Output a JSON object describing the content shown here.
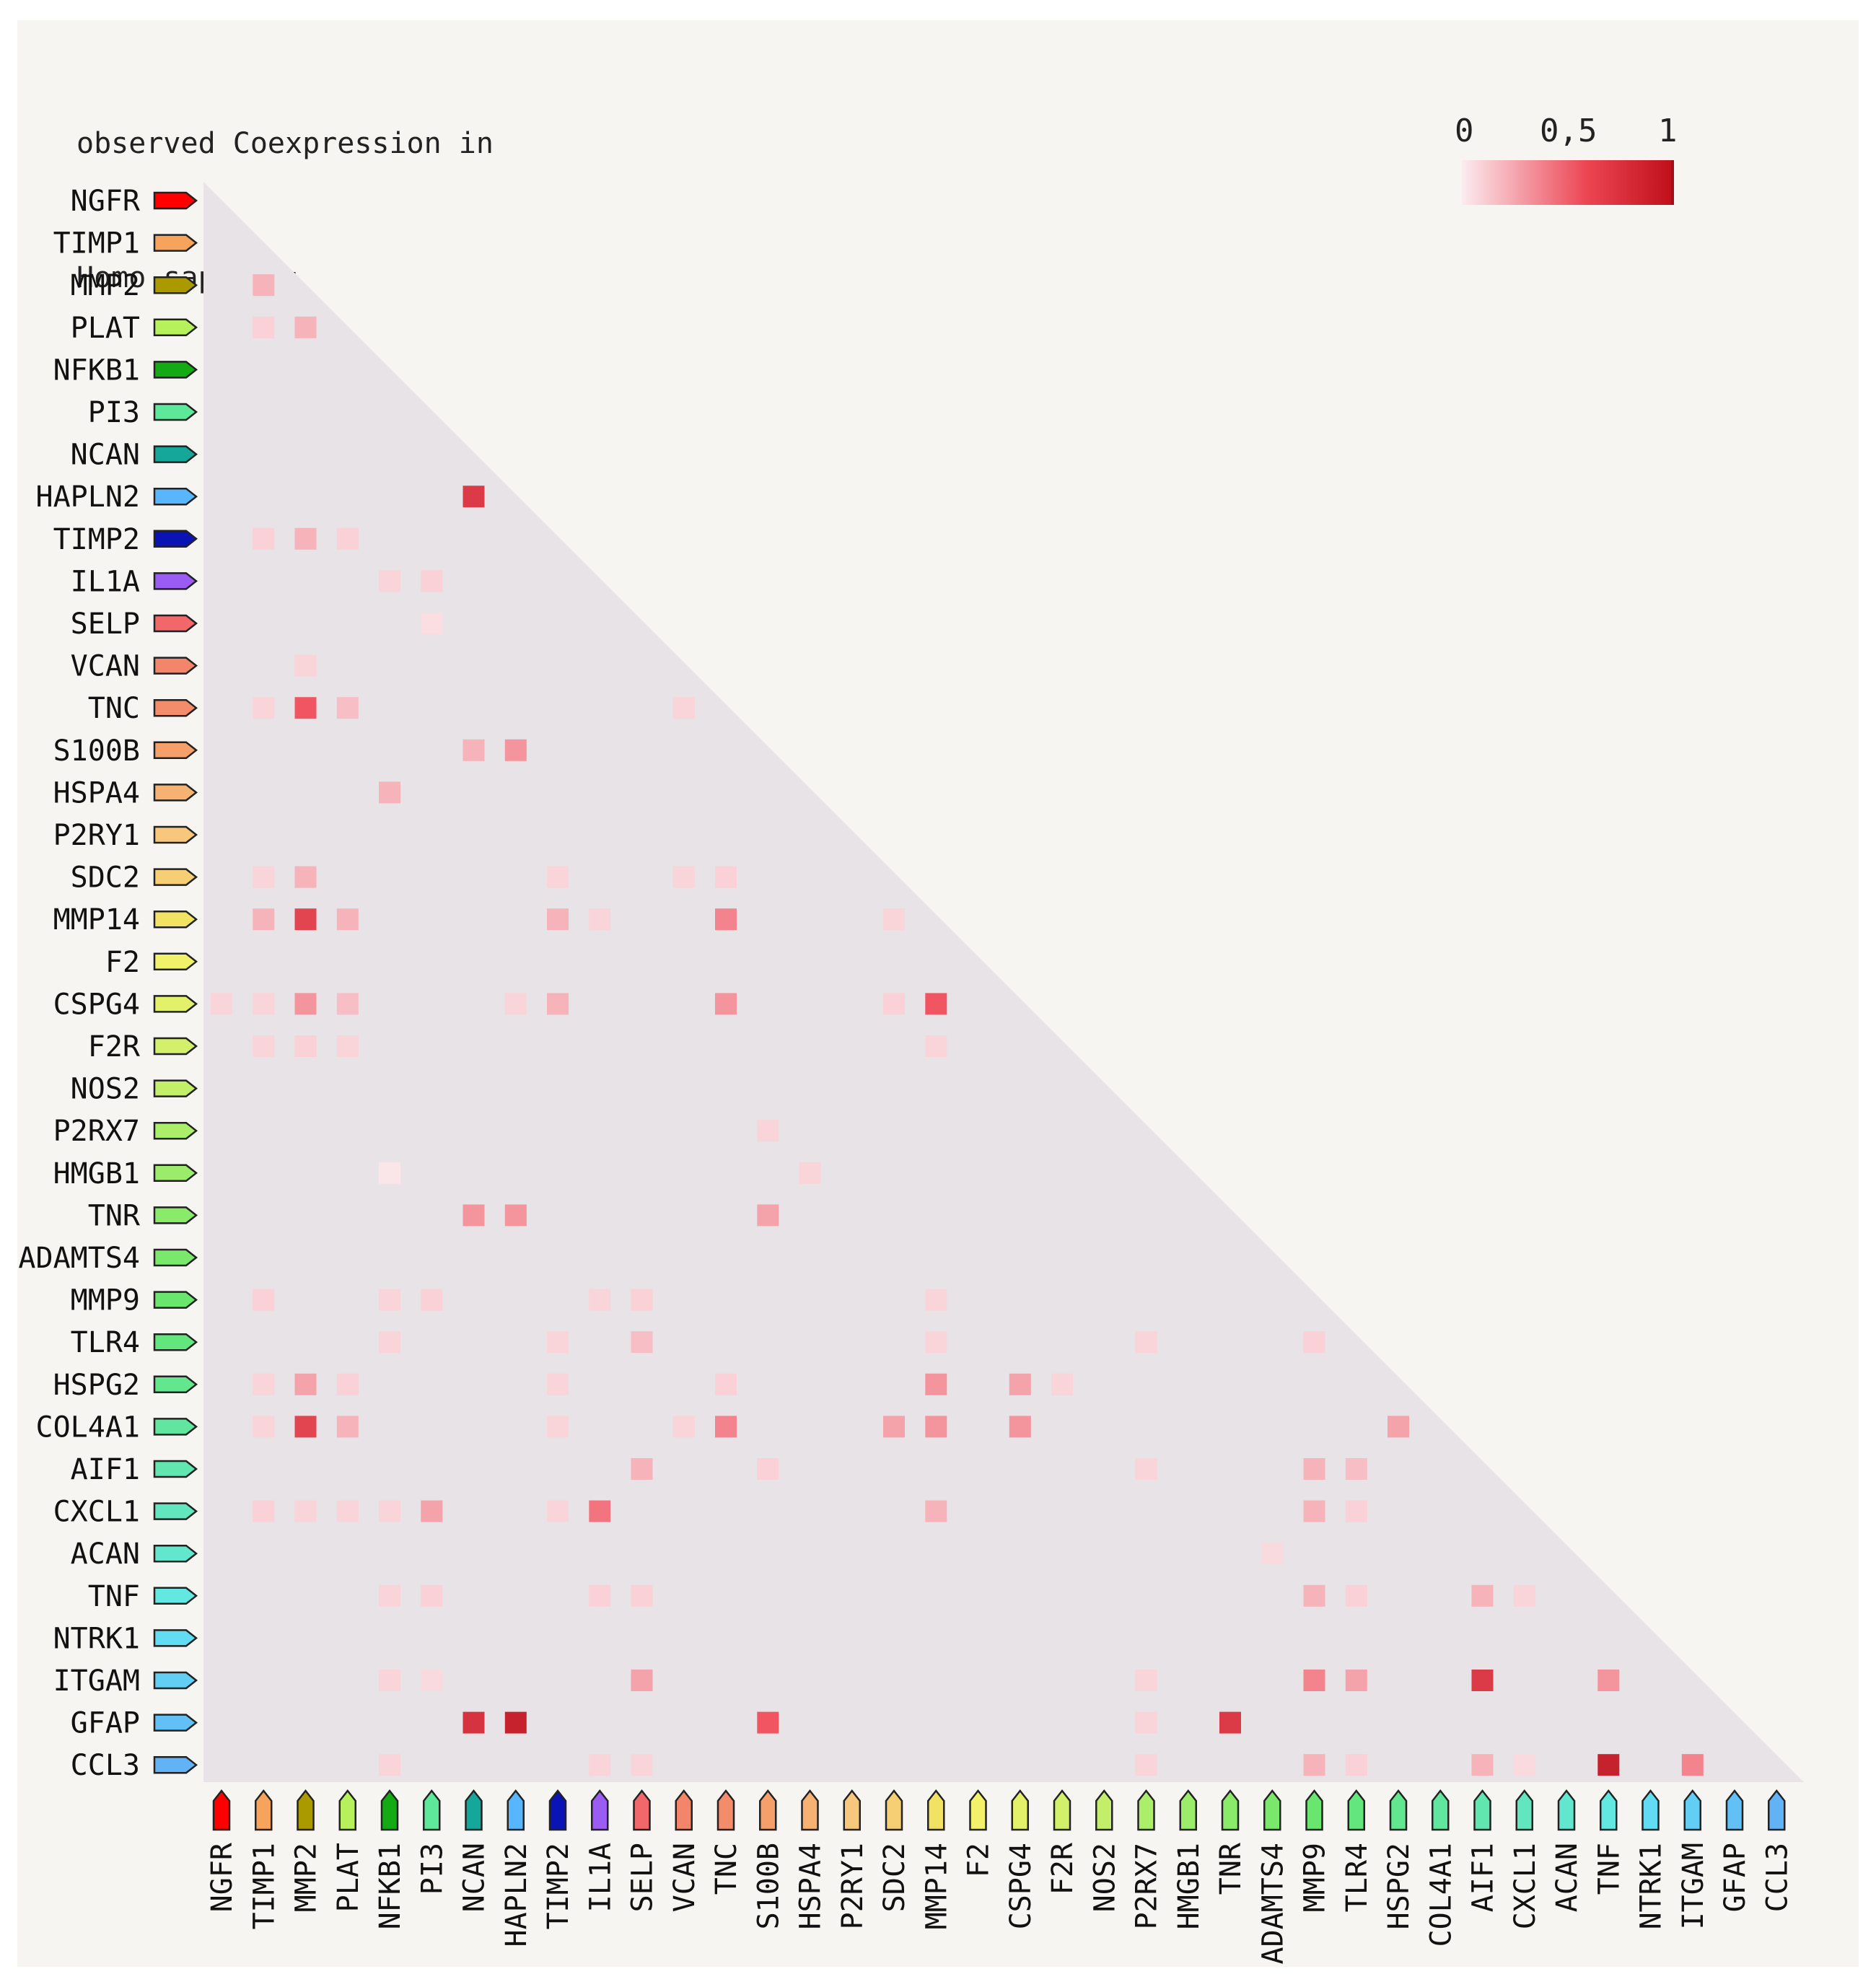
{
  "title_lines": [
    "observed Coexpression in",
    "Homo sapiens:"
  ],
  "legend": {
    "min_label": "0",
    "mid_label": "0,5",
    "max_label": "1",
    "color_low": "#fbecef",
    "color_high": "#b00814"
  },
  "colors": {
    "panel_background": "#f6f5f2",
    "triangle_background": "#e7e3e7"
  },
  "chart_data": {
    "type": "heatmap",
    "title": "observed Coexpression in Homo sapiens:",
    "value_range": [
      0,
      1
    ],
    "layout": "lower-triangle",
    "genes": [
      {
        "name": "NGFR",
        "color": "#ff0000"
      },
      {
        "name": "TIMP1",
        "color": "#f6a35c"
      },
      {
        "name": "MMP2",
        "color": "#aa9a00"
      },
      {
        "name": "PLAT",
        "color": "#b6f05a"
      },
      {
        "name": "NFKB1",
        "color": "#13aa13"
      },
      {
        "name": "PI3",
        "color": "#5ee89a"
      },
      {
        "name": "NCAN",
        "color": "#15a89a"
      },
      {
        "name": "HAPLN2",
        "color": "#58b6ff"
      },
      {
        "name": "TIMP2",
        "color": "#0a14b4"
      },
      {
        "name": "IL1A",
        "color": "#9a5cf2"
      },
      {
        "name": "SELP",
        "color": "#f2676a"
      },
      {
        "name": "VCAN",
        "color": "#f2856a"
      },
      {
        "name": "TNC",
        "color": "#f28c6a"
      },
      {
        "name": "S100B",
        "color": "#f5a06a"
      },
      {
        "name": "HSPA4",
        "color": "#f6b272"
      },
      {
        "name": "P2RY1",
        "color": "#f7c77c"
      },
      {
        "name": "SDC2",
        "color": "#f6ce74"
      },
      {
        "name": "MMP14",
        "color": "#f2e264"
      },
      {
        "name": "F2",
        "color": "#f2f26a"
      },
      {
        "name": "CSPG4",
        "color": "#e2f06a"
      },
      {
        "name": "F2R",
        "color": "#d2f06a"
      },
      {
        "name": "NOS2",
        "color": "#c2ee6a"
      },
      {
        "name": "P2RX7",
        "color": "#aaee6a"
      },
      {
        "name": "HMGB1",
        "color": "#9aec6a"
      },
      {
        "name": "TNR",
        "color": "#8aea6a"
      },
      {
        "name": "ADAMTS4",
        "color": "#7ae86a"
      },
      {
        "name": "MMP9",
        "color": "#6ae66e"
      },
      {
        "name": "TLR4",
        "color": "#64e67e"
      },
      {
        "name": "HSPG2",
        "color": "#62e68e"
      },
      {
        "name": "COL4A1",
        "color": "#60e69e"
      },
      {
        "name": "AIF1",
        "color": "#60e6ae"
      },
      {
        "name": "CXCL1",
        "color": "#62e6be"
      },
      {
        "name": "ACAN",
        "color": "#62e6ce"
      },
      {
        "name": "TNF",
        "color": "#62e8e0"
      },
      {
        "name": "NTRK1",
        "color": "#62dcf2"
      },
      {
        "name": "ITGAM",
        "color": "#62cef4"
      },
      {
        "name": "GFAP",
        "color": "#62c0f6"
      },
      {
        "name": "CCL3",
        "color": "#62b2f6"
      }
    ],
    "cells": [
      {
        "row": "MMP2",
        "col": "TIMP1",
        "value": 0.25
      },
      {
        "row": "PLAT",
        "col": "TIMP1",
        "value": 0.12
      },
      {
        "row": "PLAT",
        "col": "MMP2",
        "value": 0.25
      },
      {
        "row": "HAPLN2",
        "col": "NCAN",
        "value": 0.7
      },
      {
        "row": "TIMP2",
        "col": "TIMP1",
        "value": 0.12
      },
      {
        "row": "TIMP2",
        "col": "MMP2",
        "value": 0.25
      },
      {
        "row": "TIMP2",
        "col": "PLAT",
        "value": 0.12
      },
      {
        "row": "IL1A",
        "col": "NFKB1",
        "value": 0.1
      },
      {
        "row": "IL1A",
        "col": "PI3",
        "value": 0.12
      },
      {
        "row": "SELP",
        "col": "PI3",
        "value": 0.06
      },
      {
        "row": "VCAN",
        "col": "MMP2",
        "value": 0.1
      },
      {
        "row": "TNC",
        "col": "TIMP1",
        "value": 0.1
      },
      {
        "row": "TNC",
        "col": "MMP2",
        "value": 0.55
      },
      {
        "row": "TNC",
        "col": "PLAT",
        "value": 0.2
      },
      {
        "row": "TNC",
        "col": "VCAN",
        "value": 0.1
      },
      {
        "row": "S100B",
        "col": "NCAN",
        "value": 0.25
      },
      {
        "row": "S100B",
        "col": "HAPLN2",
        "value": 0.35
      },
      {
        "row": "HSPA4",
        "col": "NFKB1",
        "value": 0.25
      },
      {
        "row": "SDC2",
        "col": "TIMP1",
        "value": 0.1
      },
      {
        "row": "SDC2",
        "col": "MMP2",
        "value": 0.25
      },
      {
        "row": "SDC2",
        "col": "TIMP2",
        "value": 0.1
      },
      {
        "row": "SDC2",
        "col": "VCAN",
        "value": 0.1
      },
      {
        "row": "SDC2",
        "col": "TNC",
        "value": 0.12
      },
      {
        "row": "MMP14",
        "col": "TIMP1",
        "value": 0.25
      },
      {
        "row": "MMP14",
        "col": "MMP2",
        "value": 0.65
      },
      {
        "row": "MMP14",
        "col": "PLAT",
        "value": 0.25
      },
      {
        "row": "MMP14",
        "col": "TIMP2",
        "value": 0.25
      },
      {
        "row": "MMP14",
        "col": "IL1A",
        "value": 0.1
      },
      {
        "row": "MMP14",
        "col": "TNC",
        "value": 0.4
      },
      {
        "row": "MMP14",
        "col": "SDC2",
        "value": 0.1
      },
      {
        "row": "CSPG4",
        "col": "NGFR",
        "value": 0.1
      },
      {
        "row": "CSPG4",
        "col": "TIMP1",
        "value": 0.1
      },
      {
        "row": "CSPG4",
        "col": "MMP2",
        "value": 0.35
      },
      {
        "row": "CSPG4",
        "col": "PLAT",
        "value": 0.2
      },
      {
        "row": "CSPG4",
        "col": "HAPLN2",
        "value": 0.1
      },
      {
        "row": "CSPG4",
        "col": "TIMP2",
        "value": 0.25
      },
      {
        "row": "CSPG4",
        "col": "TNC",
        "value": 0.35
      },
      {
        "row": "CSPG4",
        "col": "SDC2",
        "value": 0.12
      },
      {
        "row": "CSPG4",
        "col": "MMP14",
        "value": 0.55
      },
      {
        "row": "F2R",
        "col": "TIMP1",
        "value": 0.1
      },
      {
        "row": "F2R",
        "col": "MMP2",
        "value": 0.12
      },
      {
        "row": "F2R",
        "col": "PLAT",
        "value": 0.1
      },
      {
        "row": "F2R",
        "col": "MMP14",
        "value": 0.1
      },
      {
        "row": "P2RX7",
        "col": "S100B",
        "value": 0.1
      },
      {
        "row": "HMGB1",
        "col": "NFKB1",
        "value": 0.03
      },
      {
        "row": "HMGB1",
        "col": "HSPA4",
        "value": 0.1
      },
      {
        "row": "TNR",
        "col": "NCAN",
        "value": 0.35
      },
      {
        "row": "TNR",
        "col": "HAPLN2",
        "value": 0.35
      },
      {
        "row": "TNR",
        "col": "S100B",
        "value": 0.3
      },
      {
        "row": "MMP9",
        "col": "TIMP1",
        "value": 0.12
      },
      {
        "row": "MMP9",
        "col": "NFKB1",
        "value": 0.1
      },
      {
        "row": "MMP9",
        "col": "PI3",
        "value": 0.12
      },
      {
        "row": "MMP9",
        "col": "IL1A",
        "value": 0.1
      },
      {
        "row": "MMP9",
        "col": "SELP",
        "value": 0.12
      },
      {
        "row": "MMP9",
        "col": "MMP14",
        "value": 0.1
      },
      {
        "row": "TLR4",
        "col": "NFKB1",
        "value": 0.1
      },
      {
        "row": "TLR4",
        "col": "TIMP2",
        "value": 0.1
      },
      {
        "row": "TLR4",
        "col": "SELP",
        "value": 0.2
      },
      {
        "row": "TLR4",
        "col": "MMP14",
        "value": 0.1
      },
      {
        "row": "TLR4",
        "col": "P2RX7",
        "value": 0.1
      },
      {
        "row": "TLR4",
        "col": "MMP9",
        "value": 0.12
      },
      {
        "row": "HSPG2",
        "col": "TIMP1",
        "value": 0.1
      },
      {
        "row": "HSPG2",
        "col": "MMP2",
        "value": 0.3
      },
      {
        "row": "HSPG2",
        "col": "PLAT",
        "value": 0.12
      },
      {
        "row": "HSPG2",
        "col": "TIMP2",
        "value": 0.1
      },
      {
        "row": "HSPG2",
        "col": "TNC",
        "value": 0.12
      },
      {
        "row": "HSPG2",
        "col": "MMP14",
        "value": 0.35
      },
      {
        "row": "HSPG2",
        "col": "CSPG4",
        "value": 0.3
      },
      {
        "row": "HSPG2",
        "col": "F2R",
        "value": 0.1
      },
      {
        "row": "COL4A1",
        "col": "TIMP1",
        "value": 0.1
      },
      {
        "row": "COL4A1",
        "col": "MMP2",
        "value": 0.65
      },
      {
        "row": "COL4A1",
        "col": "PLAT",
        "value": 0.25
      },
      {
        "row": "COL4A1",
        "col": "TIMP2",
        "value": 0.1
      },
      {
        "row": "COL4A1",
        "col": "VCAN",
        "value": 0.1
      },
      {
        "row": "COL4A1",
        "col": "TNC",
        "value": 0.4
      },
      {
        "row": "COL4A1",
        "col": "SDC2",
        "value": 0.3
      },
      {
        "row": "COL4A1",
        "col": "MMP14",
        "value": 0.35
      },
      {
        "row": "COL4A1",
        "col": "CSPG4",
        "value": 0.35
      },
      {
        "row": "COL4A1",
        "col": "HSPG2",
        "value": 0.3
      },
      {
        "row": "AIF1",
        "col": "SELP",
        "value": 0.25
      },
      {
        "row": "AIF1",
        "col": "S100B",
        "value": 0.12
      },
      {
        "row": "AIF1",
        "col": "P2RX7",
        "value": 0.1
      },
      {
        "row": "AIF1",
        "col": "MMP9",
        "value": 0.25
      },
      {
        "row": "AIF1",
        "col": "TLR4",
        "value": 0.2
      },
      {
        "row": "CXCL1",
        "col": "TIMP1",
        "value": 0.12
      },
      {
        "row": "CXCL1",
        "col": "MMP2",
        "value": 0.1
      },
      {
        "row": "CXCL1",
        "col": "PLAT",
        "value": 0.1
      },
      {
        "row": "CXCL1",
        "col": "NFKB1",
        "value": 0.1
      },
      {
        "row": "CXCL1",
        "col": "PI3",
        "value": 0.3
      },
      {
        "row": "CXCL1",
        "col": "TIMP2",
        "value": 0.1
      },
      {
        "row": "CXCL1",
        "col": "IL1A",
        "value": 0.45
      },
      {
        "row": "CXCL1",
        "col": "MMP14",
        "value": 0.25
      },
      {
        "row": "CXCL1",
        "col": "MMP9",
        "value": 0.25
      },
      {
        "row": "CXCL1",
        "col": "TLR4",
        "value": 0.12
      },
      {
        "row": "ACAN",
        "col": "ADAMTS4",
        "value": 0.08
      },
      {
        "row": "TNF",
        "col": "NFKB1",
        "value": 0.1
      },
      {
        "row": "TNF",
        "col": "PI3",
        "value": 0.12
      },
      {
        "row": "TNF",
        "col": "IL1A",
        "value": 0.12
      },
      {
        "row": "TNF",
        "col": "SELP",
        "value": 0.12
      },
      {
        "row": "TNF",
        "col": "MMP9",
        "value": 0.25
      },
      {
        "row": "TNF",
        "col": "TLR4",
        "value": 0.12
      },
      {
        "row": "TNF",
        "col": "AIF1",
        "value": 0.25
      },
      {
        "row": "TNF",
        "col": "CXCL1",
        "value": 0.1
      },
      {
        "row": "ITGAM",
        "col": "NFKB1",
        "value": 0.1
      },
      {
        "row": "ITGAM",
        "col": "PI3",
        "value": 0.08
      },
      {
        "row": "ITGAM",
        "col": "SELP",
        "value": 0.3
      },
      {
        "row": "ITGAM",
        "col": "P2RX7",
        "value": 0.1
      },
      {
        "row": "ITGAM",
        "col": "MMP9",
        "value": 0.4
      },
      {
        "row": "ITGAM",
        "col": "TLR4",
        "value": 0.3
      },
      {
        "row": "ITGAM",
        "col": "AIF1",
        "value": 0.7
      },
      {
        "row": "ITGAM",
        "col": "TNF",
        "value": 0.35
      },
      {
        "row": "GFAP",
        "col": "NCAN",
        "value": 0.75
      },
      {
        "row": "GFAP",
        "col": "HAPLN2",
        "value": 0.85
      },
      {
        "row": "GFAP",
        "col": "S100B",
        "value": 0.55
      },
      {
        "row": "GFAP",
        "col": "P2RX7",
        "value": 0.1
      },
      {
        "row": "GFAP",
        "col": "TNR",
        "value": 0.7
      },
      {
        "row": "CCL3",
        "col": "NFKB1",
        "value": 0.1
      },
      {
        "row": "CCL3",
        "col": "IL1A",
        "value": 0.1
      },
      {
        "row": "CCL3",
        "col": "SELP",
        "value": 0.1
      },
      {
        "row": "CCL3",
        "col": "P2RX7",
        "value": 0.1
      },
      {
        "row": "CCL3",
        "col": "MMP9",
        "value": 0.25
      },
      {
        "row": "CCL3",
        "col": "TLR4",
        "value": 0.12
      },
      {
        "row": "CCL3",
        "col": "AIF1",
        "value": 0.25
      },
      {
        "row": "CCL3",
        "col": "CXCL1",
        "value": 0.08
      },
      {
        "row": "CCL3",
        "col": "TNF",
        "value": 0.85
      },
      {
        "row": "CCL3",
        "col": "ITGAM",
        "value": 0.4
      }
    ]
  }
}
